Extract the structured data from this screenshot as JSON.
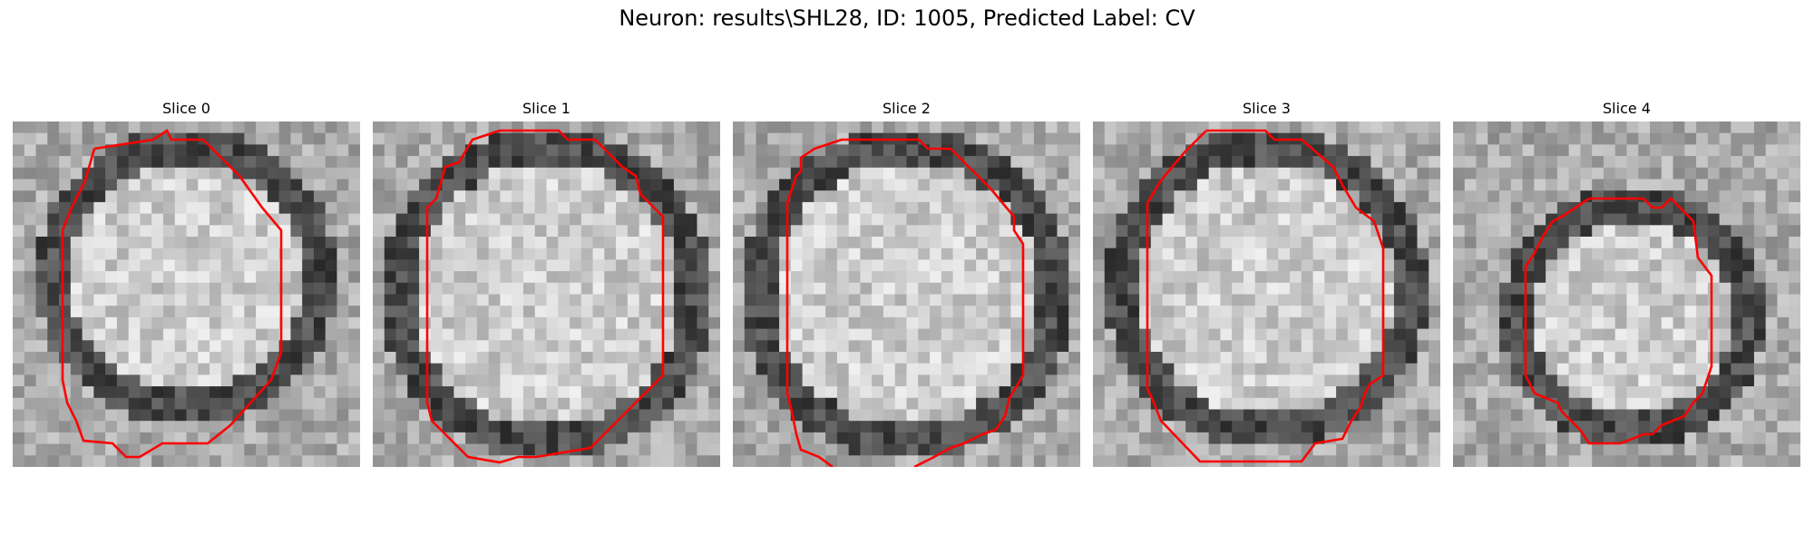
{
  "figure": {
    "title": "Neuron: results\\SHL28, ID: 1005, Predicted Label: CV"
  },
  "contour_color": "#ff0000",
  "slices": [
    {
      "title": "Slice 0"
    },
    {
      "title": "Slice 1"
    },
    {
      "title": "Slice 2"
    },
    {
      "title": "Slice 3"
    },
    {
      "title": "Slice 4"
    }
  ]
}
